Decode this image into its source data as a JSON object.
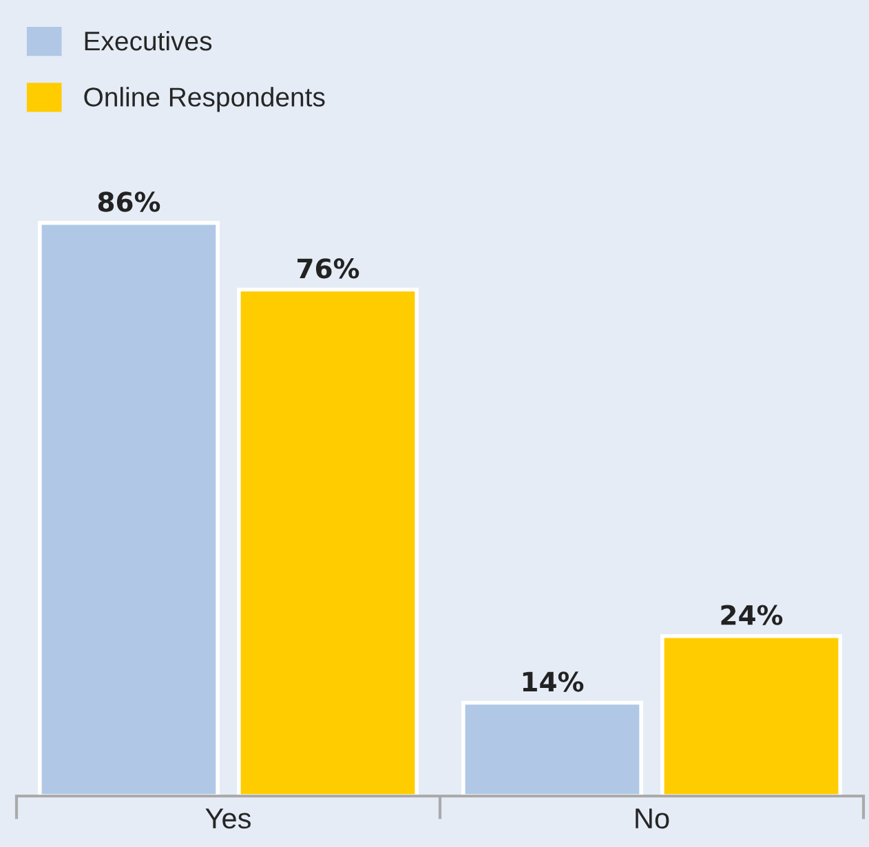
{
  "chart_data": {
    "type": "bar",
    "categories": [
      "Yes",
      "No"
    ],
    "series": [
      {
        "name": "Executives",
        "color": "#b0c8e6",
        "values": [
          86,
          14
        ],
        "value_labels": [
          "86%",
          "14%"
        ]
      },
      {
        "name": "Online Respondents",
        "color": "#ffcc00",
        "values": [
          76,
          24
        ],
        "value_labels": [
          "76%",
          "24%"
        ]
      }
    ],
    "legend": "top left",
    "grid": false
  }
}
